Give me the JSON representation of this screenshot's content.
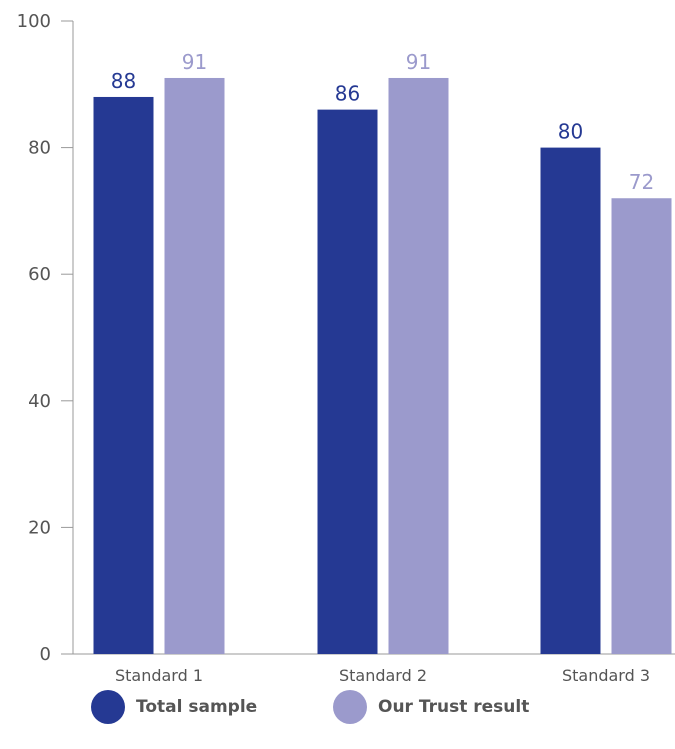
{
  "chart_data": {
    "type": "bar",
    "title": "",
    "xlabel": "",
    "ylabel": "",
    "ylim": [
      0,
      100
    ],
    "yticks": [
      0,
      20,
      40,
      60,
      80,
      100
    ],
    "categories": [
      "Standard 1",
      "Standard 2",
      "Standard 3"
    ],
    "series": [
      {
        "name": "Total sample",
        "values": [
          88,
          86,
          80
        ],
        "color": "#253993"
      },
      {
        "name": "Our Trust result",
        "values": [
          91,
          91,
          72
        ],
        "color": "#9b9acc"
      }
    ],
    "grid": false,
    "legend_position": "bottom"
  }
}
